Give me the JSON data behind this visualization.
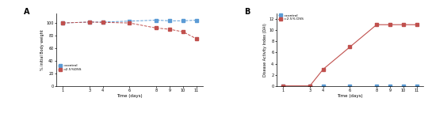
{
  "days": [
    1,
    3,
    4,
    6,
    8,
    9,
    10,
    11
  ],
  "bw_control": [
    100,
    101.5,
    101.5,
    103,
    104.5,
    103.5,
    103.5,
    104.5
  ],
  "bw_dss": [
    100,
    101.5,
    101,
    100,
    92,
    90,
    86,
    75
  ],
  "dai_control": [
    0,
    0,
    0,
    0,
    0,
    0,
    0,
    0
  ],
  "dai_dss": [
    0,
    0,
    3,
    7,
    11,
    11,
    11,
    11
  ],
  "bw_ylabel": "% initial Body weight",
  "dai_ylabel": "Disease Activity Index (DAI)",
  "xlabel": "Time (days)",
  "bw_ylim": [
    0,
    115
  ],
  "dai_ylim": [
    0,
    13
  ],
  "bw_yticks": [
    0,
    20,
    40,
    60,
    80,
    100
  ],
  "dai_yticks": [
    0,
    2,
    4,
    6,
    8,
    10,
    12
  ],
  "xticks": [
    1,
    3,
    4,
    6,
    8,
    9,
    10,
    11
  ],
  "color_control": "#5b9bd5",
  "color_dss": "#c0504d",
  "label_control": "=control",
  "label_dss": "=2.5%DSS",
  "label_dss_dai": "=2.5% DSS",
  "panel_a": "A",
  "panel_b": "B",
  "background": "#ffffff",
  "figsize": [
    5.45,
    1.43
  ],
  "dpi": 100
}
